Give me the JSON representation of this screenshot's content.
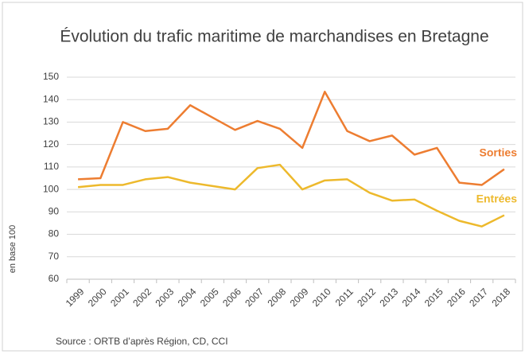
{
  "chart_data": {
    "type": "line",
    "title": "Évolution du trafic maritime de marchandises en Bretagne",
    "y_label": "en base 100",
    "source": "Source : ORTB d’après Région, CD, CCI",
    "categories": [
      "1999",
      "2000",
      "2001",
      "2002",
      "2003",
      "2004",
      "2005",
      "2006",
      "2007",
      "2008",
      "2009",
      "2010",
      "2011",
      "2012",
      "2013",
      "2014",
      "2015",
      "2016",
      "2017",
      "2018"
    ],
    "series": [
      {
        "name": "Sorties",
        "color": "#ED7D31",
        "values": [
          104.5,
          105,
          130,
          126,
          127,
          137.5,
          132,
          126.5,
          130.5,
          127,
          118.5,
          143.5,
          126,
          121.5,
          124,
          115.5,
          118.5,
          103,
          102,
          109
        ]
      },
      {
        "name": "Entrées",
        "color": "#EDB92C",
        "values": [
          101,
          102,
          102,
          104.5,
          105.5,
          103,
          101.5,
          100,
          109.5,
          111,
          100,
          104,
          104.5,
          98.5,
          95,
          95.5,
          90.5,
          86,
          83.5,
          88.5
        ]
      }
    ],
    "ylim": [
      60,
      150
    ],
    "yticks": [
      60,
      70,
      80,
      90,
      100,
      110,
      120,
      130,
      140,
      150
    ],
    "grid": true
  }
}
